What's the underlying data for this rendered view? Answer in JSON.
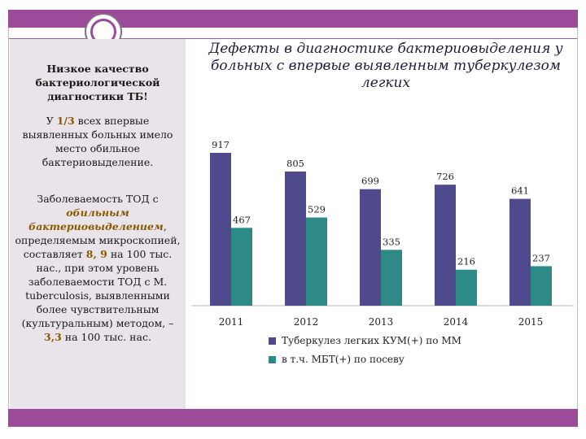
{
  "left_panel": {
    "heading": "Низкое качество бактериологической диагностики ТБ!",
    "p1_prefix": "У ",
    "p1_accent": "1/3",
    "p1_suffix": " всех впервые выявленных больных имело место обильное бактериовыделение.",
    "p2_prefix": "Заболеваемость ТОД с ",
    "p2_accent": "обильным бактериовыделением",
    "p2_mid": ", определяемым микроскопией, составляет ",
    "p2_value1": "8, 9",
    "p2_mid2": " на 100 тыс. нас., при этом уровень заболеваемости ТОД с M. tuberculosis, выявленными более чувствительным (культуральным) методом, – ",
    "p2_value2": "3,3",
    "p2_suffix": " на 100 тыс. нас."
  },
  "chart_data": {
    "type": "bar",
    "title": "Дефекты в диагностике бактериовыделения у больных с впервые выявленным туберкулезом легких",
    "categories": [
      "2011",
      "2012",
      "2013",
      "2014",
      "2015"
    ],
    "series": [
      {
        "name": "Туберкулез легких КУМ(+) по ММ",
        "values": [
          917,
          805,
          699,
          726,
          641
        ],
        "color": "#4f4a8c"
      },
      {
        "name": "в т.ч. МБТ(+) по посеву",
        "values": [
          467,
          529,
          335,
          216,
          237
        ],
        "color": "#2e8a86"
      }
    ],
    "ylim": [
      0,
      1000
    ],
    "grid": false,
    "legend": "bottom"
  }
}
